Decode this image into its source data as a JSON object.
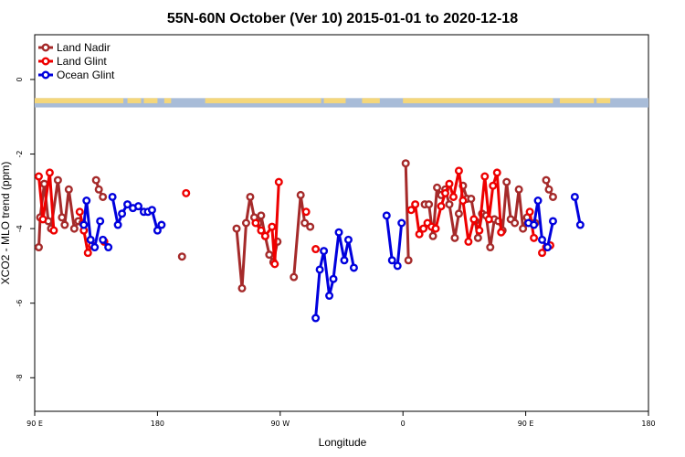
{
  "chart_data": {
    "type": "line",
    "title": "55N-60N October (Ver 10)   2015-01-01 to 2020-12-18",
    "xlabel": "Longitude",
    "ylabel": "XCO2 - MLO trend (ppm)",
    "xlim": [
      90,
      450
    ],
    "ylim": [
      -8.9,
      1.2
    ],
    "xticks": [
      90,
      180,
      270,
      360,
      450
    ],
    "xtick_labels": [
      "90 E",
      "180",
      "90 W",
      "0",
      "90 E",
      "180"
    ],
    "xtick_positions": [
      90,
      180,
      270,
      360,
      450,
      540
    ],
    "yticks": [
      0,
      -2,
      -4,
      -6,
      -8
    ],
    "ytick_labels": [
      "0",
      "-2",
      "-4",
      "-6",
      "-8"
    ],
    "legend_position": "top-left",
    "map_strip": {
      "y_top": -0.5,
      "y_bottom": -0.75,
      "ocean_color": "#a8bcd8",
      "land_color": "#f5d77a"
    },
    "series": [
      {
        "name": "Land Nadir",
        "color": "#a52a2a",
        "segments": [
          [
            [
              93,
              -4.5
            ],
            [
              94,
              -3.7
            ],
            [
              97,
              -2.8
            ],
            [
              100,
              -3.8
            ],
            [
              102,
              -4.0
            ],
            [
              107,
              -2.7
            ],
            [
              110,
              -3.7
            ],
            [
              112,
              -3.9
            ],
            [
              115,
              -2.95
            ],
            [
              119,
              -4.0
            ],
            [
              122,
              -3.8
            ],
            [
              125,
              -3.85
            ]
          ],
          [
            [
              135,
              -2.7
            ],
            [
              137,
              -2.95
            ],
            [
              140,
              -3.15
            ]
          ],
          [
            [
              198,
              -4.75
            ]
          ],
          [
            [
              238,
              -4.0
            ],
            [
              242,
              -5.6
            ],
            [
              245,
              -3.85
            ],
            [
              248,
              -3.15
            ],
            [
              251,
              -3.7
            ],
            [
              254,
              -3.85
            ],
            [
              256,
              -3.65
            ],
            [
              259,
              -4.2
            ],
            [
              262,
              -4.7
            ],
            [
              265,
              -4.9
            ],
            [
              268,
              -4.35
            ]
          ],
          [
            [
              280,
              -5.3
            ],
            [
              285,
              -3.1
            ],
            [
              288,
              -3.85
            ],
            [
              292,
              -3.95
            ]
          ],
          [
            [
              362,
              -2.25
            ],
            [
              364,
              -4.85
            ]
          ],
          [
            [
              376,
              -3.35
            ],
            [
              379,
              -3.35
            ],
            [
              382,
              -4.2
            ],
            [
              385,
              -2.9
            ],
            [
              388,
              -3.1
            ],
            [
              391,
              -2.95
            ],
            [
              394,
              -3.35
            ],
            [
              398,
              -4.25
            ],
            [
              401,
              -3.6
            ],
            [
              404,
              -2.85
            ],
            [
              407,
              -3.2
            ],
            [
              410,
              -3.2
            ],
            [
              413,
              -3.8
            ],
            [
              415,
              -4.25
            ],
            [
              418,
              -3.6
            ],
            [
              421,
              -3.65
            ],
            [
              424,
              -4.5
            ],
            [
              427,
              -3.75
            ],
            [
              430,
              -3.8
            ],
            [
              433,
              -4.05
            ],
            [
              436,
              -2.75
            ],
            [
              439,
              -3.75
            ],
            [
              442,
              -3.85
            ],
            [
              445,
              -2.95
            ],
            [
              448,
              -4.0
            ],
            [
              451,
              -3.7
            ],
            [
              454,
              -3.85
            ],
            [
              457,
              -3.85
            ]
          ],
          [
            [
              465,
              -2.7
            ],
            [
              467,
              -2.95
            ],
            [
              470,
              -3.15
            ]
          ]
        ]
      },
      {
        "name": "Land Glint",
        "color": "#ee0000",
        "segments": [
          [
            [
              93,
              -2.6
            ],
            [
              96,
              -3.75
            ],
            [
              101,
              -2.5
            ],
            [
              104,
              -4.05
            ]
          ],
          [
            [
              123,
              -3.55
            ],
            [
              126,
              -4.05
            ],
            [
              129,
              -4.65
            ],
            [
              132,
              -4.45
            ]
          ],
          [
            [
              141,
              -4.35
            ]
          ],
          [
            [
              201,
              -3.05
            ]
          ],
          [
            [
              252,
              -3.85
            ],
            [
              256,
              -4.05
            ],
            [
              259,
              -4.2
            ],
            [
              264,
              -3.95
            ],
            [
              266,
              -4.95
            ],
            [
              269,
              -2.75
            ]
          ],
          [
            [
              289,
              -3.55
            ]
          ],
          [
            [
              296,
              -4.55
            ]
          ],
          [
            [
              366,
              -3.5
            ],
            [
              369,
              -3.35
            ],
            [
              372,
              -4.15
            ],
            [
              375,
              -4.0
            ],
            [
              378,
              -3.85
            ],
            [
              381,
              -3.95
            ],
            [
              384,
              -4.0
            ],
            [
              388,
              -3.4
            ],
            [
              391,
              -3.05
            ],
            [
              394,
              -2.8
            ],
            [
              397,
              -3.15
            ],
            [
              401,
              -2.45
            ],
            [
              404,
              -3.25
            ],
            [
              408,
              -4.35
            ],
            [
              412,
              -3.75
            ],
            [
              416,
              -4.05
            ],
            [
              420,
              -2.6
            ],
            [
              423,
              -3.75
            ],
            [
              426,
              -2.85
            ],
            [
              429,
              -2.5
            ],
            [
              432,
              -4.1
            ]
          ],
          [
            [
              453,
              -3.55
            ],
            [
              456,
              -4.25
            ]
          ],
          [
            [
              462,
              -4.65
            ],
            [
              465,
              -4.5
            ],
            [
              468,
              -4.45
            ]
          ]
        ]
      },
      {
        "name": "Ocean Glint",
        "color": "#0000dd",
        "segments": [
          [
            [
              126,
              -3.9
            ],
            [
              128,
              -3.25
            ],
            [
              131,
              -4.3
            ],
            [
              134,
              -4.5
            ],
            [
              138,
              -3.8
            ]
          ],
          [
            [
              147,
              -3.15
            ],
            [
              151,
              -3.9
            ],
            [
              154,
              -3.6
            ],
            [
              158,
              -3.35
            ],
            [
              162,
              -3.45
            ],
            [
              166,
              -3.4
            ],
            [
              170,
              -3.55
            ],
            [
              173,
              -3.55
            ],
            [
              176,
              -3.5
            ],
            [
              180,
              -4.05
            ],
            [
              183,
              -3.9
            ]
          ],
          [
            [
              296,
              -6.4
            ],
            [
              299,
              -5.1
            ],
            [
              302,
              -4.6
            ],
            [
              306,
              -5.8
            ],
            [
              309,
              -5.35
            ],
            [
              313,
              -4.1
            ],
            [
              317,
              -4.85
            ],
            [
              320,
              -4.3
            ],
            [
              324,
              -5.05
            ]
          ],
          [
            [
              348,
              -3.65
            ],
            [
              352,
              -4.85
            ],
            [
              356,
              -5.0
            ],
            [
              359,
              -3.85
            ]
          ],
          [
            [
              140,
              -4.3
            ],
            [
              144,
              -4.5
            ]
          ],
          [
            [
              452,
              -3.85
            ],
            [
              456,
              -3.9
            ],
            [
              459,
              -3.25
            ],
            [
              462,
              -4.3
            ],
            [
              466,
              -4.5
            ],
            [
              470,
              -3.8
            ]
          ],
          [
            [
              486,
              -3.15
            ],
            [
              490,
              -3.9
            ]
          ]
        ]
      }
    ]
  }
}
